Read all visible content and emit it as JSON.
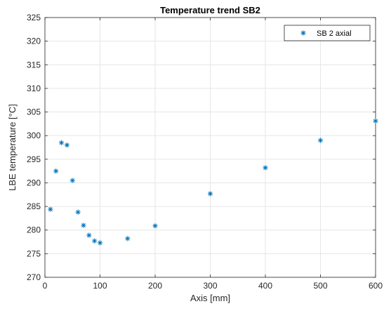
{
  "chart_data": {
    "type": "scatter",
    "title": "Temperature trend SB2",
    "xlabel": "Axis [mm]",
    "ylabel": "LBE temperature [°C]",
    "xlim": [
      0,
      600
    ],
    "ylim": [
      270,
      325
    ],
    "x_ticks": [
      0,
      100,
      200,
      300,
      400,
      500,
      600
    ],
    "y_ticks": [
      270,
      275,
      280,
      285,
      290,
      295,
      300,
      305,
      310,
      315,
      320,
      325
    ],
    "grid": true,
    "legend_position": "top-right",
    "series": [
      {
        "name": "SB 2 axial",
        "marker": "asterisk",
        "color": "#0072BD",
        "x": [
          10,
          20,
          30,
          40,
          50,
          60,
          70,
          80,
          90,
          100,
          150,
          200,
          300,
          400,
          500,
          600
        ],
        "y": [
          284.4,
          292.5,
          298.5,
          298.0,
          290.5,
          283.8,
          281.0,
          278.9,
          277.7,
          277.3,
          278.2,
          280.9,
          287.7,
          293.2,
          299.0,
          303.1
        ]
      }
    ]
  }
}
